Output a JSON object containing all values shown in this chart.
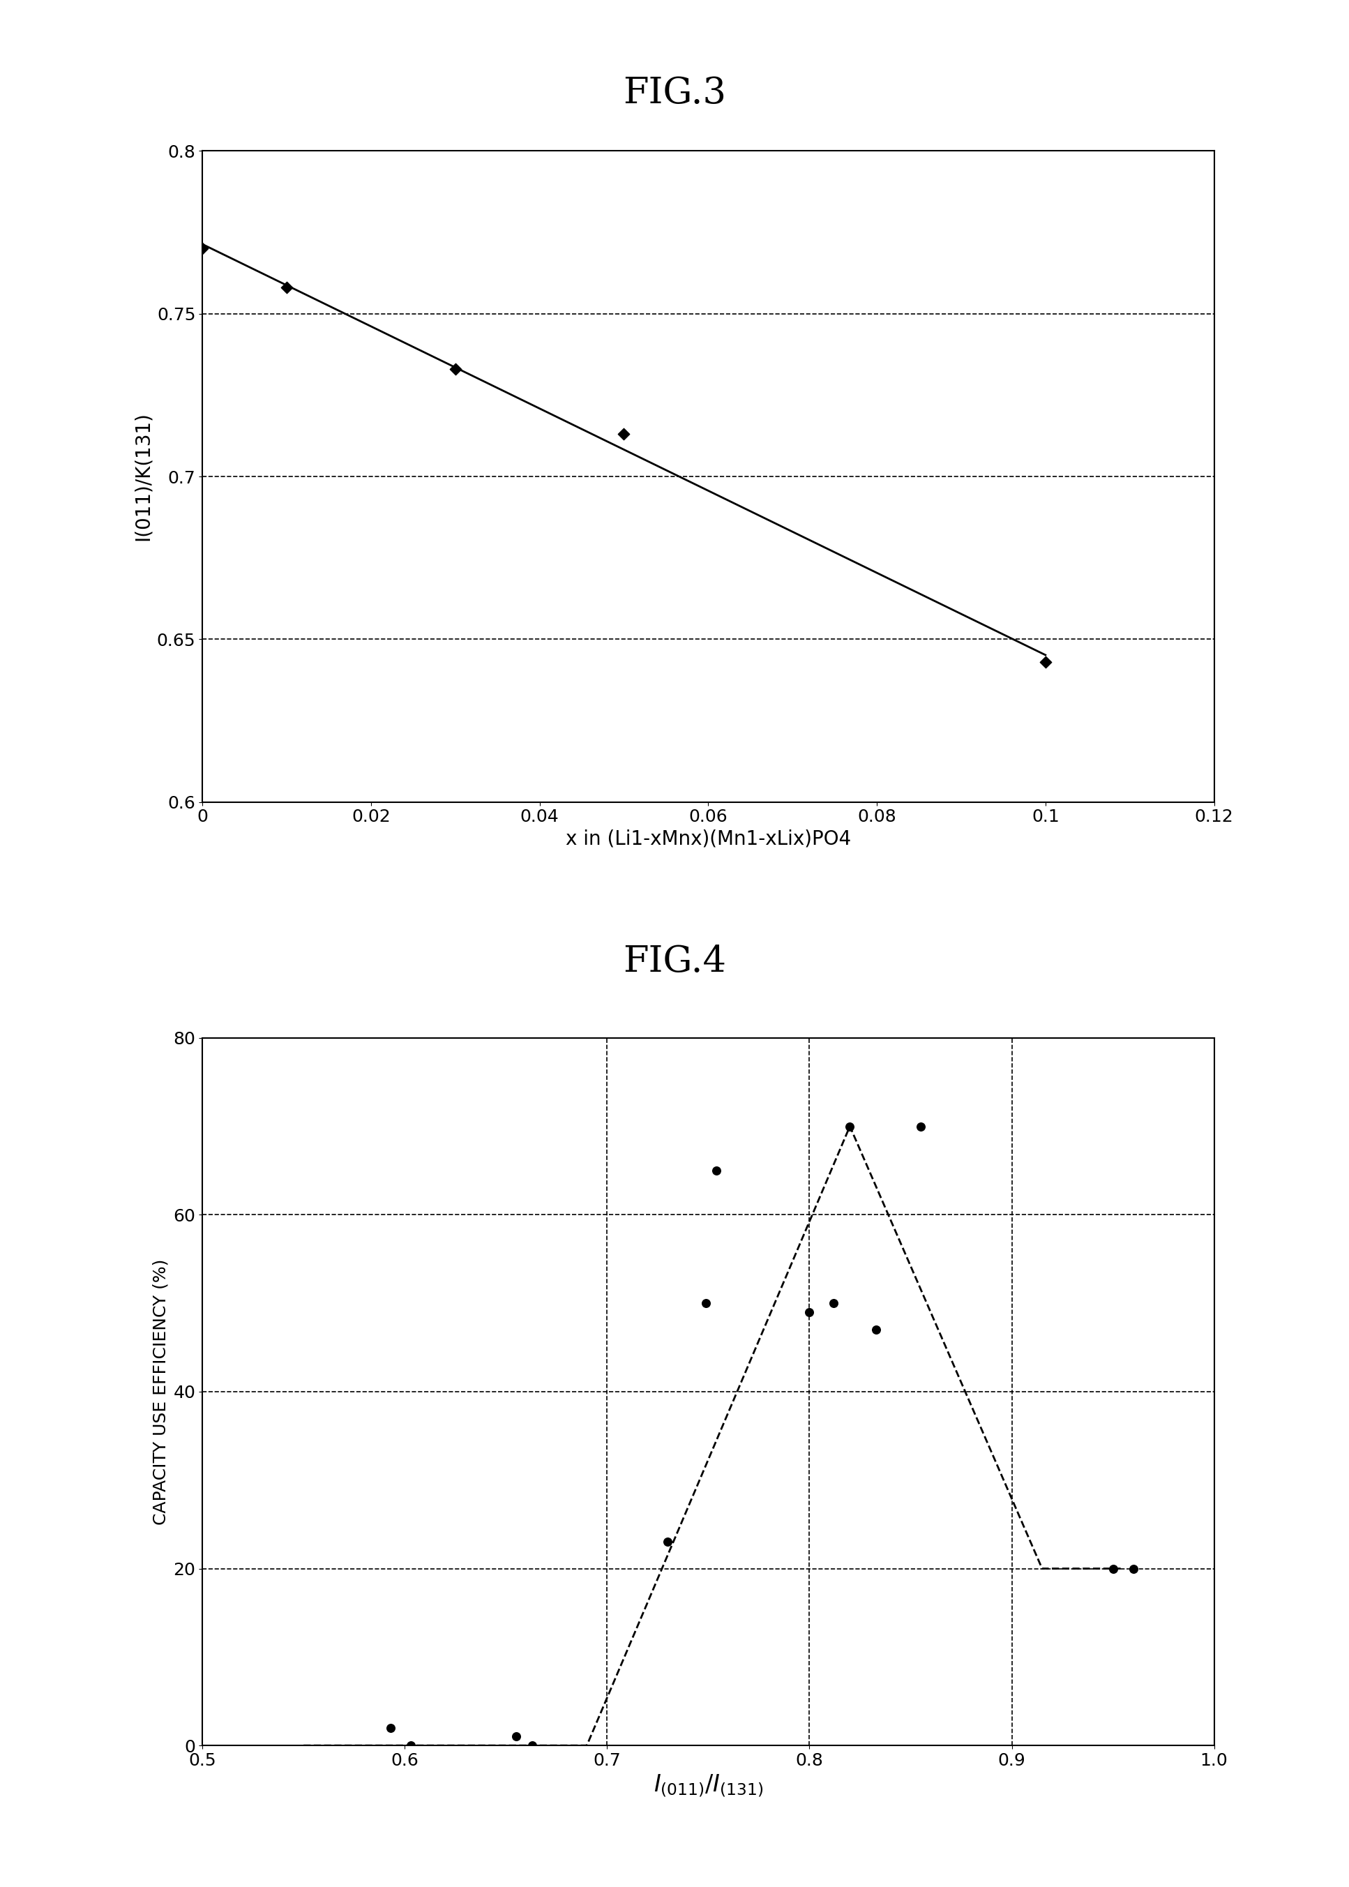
{
  "fig3": {
    "title": "FIG.3",
    "title_fontsize": 38,
    "x_data": [
      0,
      0.01,
      0.03,
      0.05,
      0.1
    ],
    "y_data": [
      0.77,
      0.758,
      0.733,
      0.713,
      0.643
    ],
    "line_x": [
      0.0,
      0.1
    ],
    "xlim": [
      0,
      0.12
    ],
    "ylim": [
      0.6,
      0.8
    ],
    "xticks": [
      0,
      0.02,
      0.04,
      0.06,
      0.08,
      0.1,
      0.12
    ],
    "yticks": [
      0.6,
      0.65,
      0.7,
      0.75,
      0.8
    ],
    "xlabel": "x in (Li1-xMnx)(Mn1-xLix)PO4",
    "ylabel": "I(011)/K(131)",
    "hgrid_values": [
      0.65,
      0.7,
      0.75
    ],
    "line_color": "#000000",
    "marker_color": "#000000",
    "xlabel_fontsize": 20,
    "ylabel_fontsize": 20,
    "tick_fontsize": 18
  },
  "fig4": {
    "title": "FIG.4",
    "title_fontsize": 38,
    "scatter_x": [
      0.593,
      0.603,
      0.655,
      0.663,
      0.73,
      0.749,
      0.754,
      0.8,
      0.812,
      0.82,
      0.833,
      0.855,
      0.95,
      0.96
    ],
    "scatter_y": [
      2,
      0,
      1,
      0,
      23,
      50,
      65,
      49,
      50,
      70,
      47,
      70,
      20,
      20
    ],
    "dash_line_x": [
      0.55,
      0.69,
      0.69,
      0.82,
      0.915,
      0.955
    ],
    "dash_line_y": [
      0,
      0,
      0,
      70,
      20,
      20
    ],
    "xlim": [
      0.5,
      1.0
    ],
    "ylim": [
      0,
      80
    ],
    "xticks": [
      0.5,
      0.6,
      0.7,
      0.8,
      0.9,
      1.0
    ],
    "yticks": [
      0,
      20,
      40,
      60,
      80
    ],
    "xlabel": "$I_{(011)}/I_{(131)}$",
    "ylabel": "CAPACITY USE EFFICIENCY (%)",
    "vgrid_values": [
      0.7,
      0.8,
      0.9
    ],
    "hgrid_values": [
      20,
      40,
      60
    ],
    "xlabel_fontsize": 24,
    "ylabel_fontsize": 18,
    "tick_fontsize": 18
  },
  "bg_color": "#ffffff",
  "figure_width": 19.34,
  "figure_height": 27.05
}
